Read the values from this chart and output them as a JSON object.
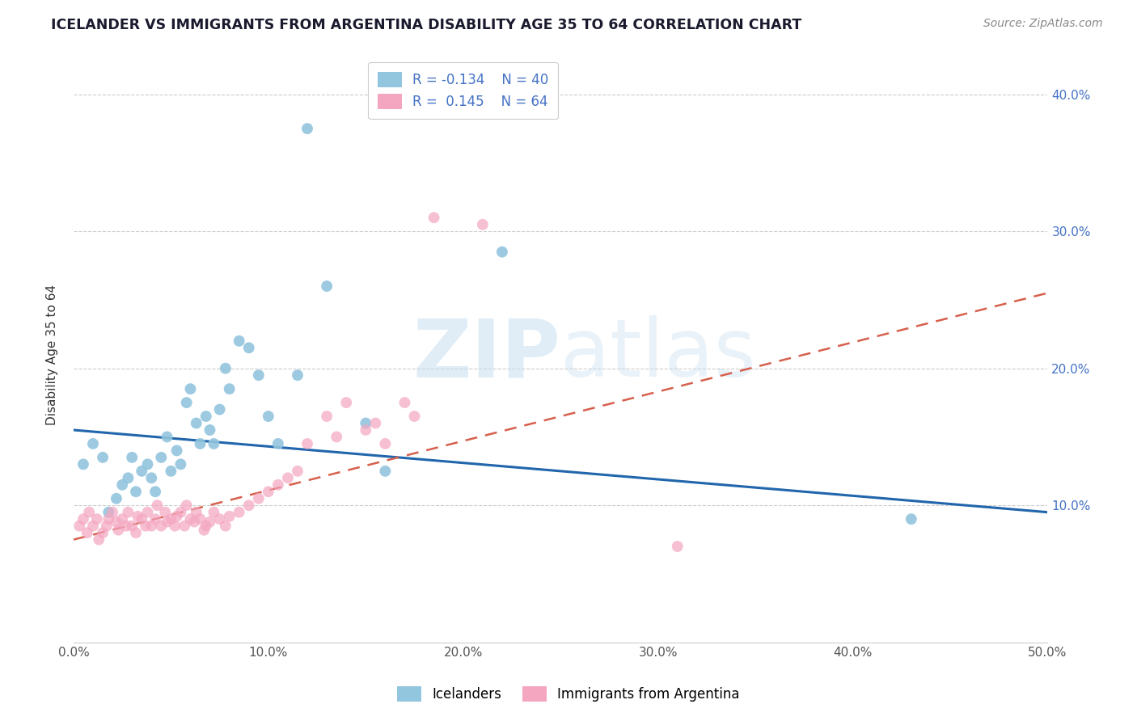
{
  "title": "ICELANDER VS IMMIGRANTS FROM ARGENTINA DISABILITY AGE 35 TO 64 CORRELATION CHART",
  "source": "Source: ZipAtlas.com",
  "ylabel": "Disability Age 35 to 64",
  "xlim": [
    0.0,
    0.5
  ],
  "ylim": [
    0.0,
    0.42
  ],
  "x_ticks": [
    0.0,
    0.1,
    0.2,
    0.3,
    0.4,
    0.5
  ],
  "x_tick_labels": [
    "0.0%",
    "10.0%",
    "20.0%",
    "30.0%",
    "40.0%",
    "50.0%"
  ],
  "y_ticks": [
    0.1,
    0.2,
    0.3,
    0.4
  ],
  "y_tick_labels": [
    "10.0%",
    "20.0%",
    "30.0%",
    "40.0%"
  ],
  "blue_color": "#92c5de",
  "pink_color": "#f4a6c0",
  "blue_line_color": "#2166ac",
  "pink_line_color": "#d6604d",
  "watermark_zip": "ZIP",
  "watermark_atlas": "atlas",
  "blue_scatter_x": [
    0.005,
    0.01,
    0.015,
    0.018,
    0.022,
    0.025,
    0.028,
    0.03,
    0.032,
    0.035,
    0.038,
    0.04,
    0.042,
    0.045,
    0.048,
    0.05,
    0.053,
    0.055,
    0.058,
    0.06,
    0.063,
    0.065,
    0.068,
    0.07,
    0.072,
    0.075,
    0.078,
    0.08,
    0.085,
    0.09,
    0.095,
    0.1,
    0.105,
    0.115,
    0.12,
    0.13,
    0.15,
    0.16,
    0.22,
    0.43
  ],
  "blue_scatter_y": [
    0.13,
    0.145,
    0.135,
    0.095,
    0.105,
    0.115,
    0.12,
    0.135,
    0.11,
    0.125,
    0.13,
    0.12,
    0.11,
    0.135,
    0.15,
    0.125,
    0.14,
    0.13,
    0.175,
    0.185,
    0.16,
    0.145,
    0.165,
    0.155,
    0.145,
    0.17,
    0.2,
    0.185,
    0.22,
    0.215,
    0.195,
    0.165,
    0.145,
    0.195,
    0.375,
    0.26,
    0.16,
    0.125,
    0.285,
    0.09
  ],
  "pink_scatter_x": [
    0.003,
    0.005,
    0.007,
    0.008,
    0.01,
    0.012,
    0.013,
    0.015,
    0.017,
    0.018,
    0.02,
    0.022,
    0.023,
    0.025,
    0.027,
    0.028,
    0.03,
    0.032,
    0.033,
    0.035,
    0.037,
    0.038,
    0.04,
    0.042,
    0.043,
    0.045,
    0.047,
    0.048,
    0.05,
    0.052,
    0.053,
    0.055,
    0.057,
    0.058,
    0.06,
    0.062,
    0.063,
    0.065,
    0.067,
    0.068,
    0.07,
    0.072,
    0.075,
    0.078,
    0.08,
    0.085,
    0.09,
    0.095,
    0.1,
    0.105,
    0.11,
    0.115,
    0.12,
    0.13,
    0.135,
    0.14,
    0.15,
    0.155,
    0.16,
    0.17,
    0.175,
    0.185,
    0.21,
    0.31
  ],
  "pink_scatter_y": [
    0.085,
    0.09,
    0.08,
    0.095,
    0.085,
    0.09,
    0.075,
    0.08,
    0.085,
    0.09,
    0.095,
    0.088,
    0.082,
    0.09,
    0.085,
    0.095,
    0.085,
    0.08,
    0.092,
    0.09,
    0.085,
    0.095,
    0.085,
    0.09,
    0.1,
    0.085,
    0.095,
    0.088,
    0.09,
    0.085,
    0.092,
    0.095,
    0.085,
    0.1,
    0.09,
    0.088,
    0.095,
    0.09,
    0.082,
    0.085,
    0.088,
    0.095,
    0.09,
    0.085,
    0.092,
    0.095,
    0.1,
    0.105,
    0.11,
    0.115,
    0.12,
    0.125,
    0.145,
    0.165,
    0.15,
    0.175,
    0.155,
    0.16,
    0.145,
    0.175,
    0.165,
    0.31,
    0.305,
    0.07
  ]
}
